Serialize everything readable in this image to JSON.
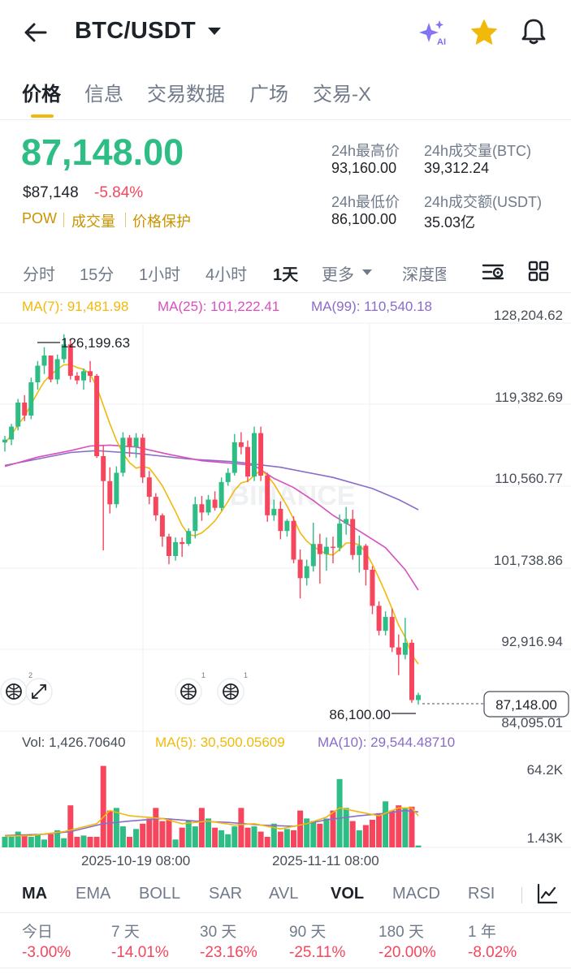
{
  "header": {
    "pair": "BTC/USDT"
  },
  "tabs": [
    "价格",
    "信息",
    "交易数据",
    "广场",
    "交易-X"
  ],
  "ticker": {
    "last_price": "87,148.00",
    "usd_price": "$87,148",
    "change_pct": "-5.84%",
    "tags": [
      "POW",
      "成交量",
      "价格保护"
    ],
    "stats": {
      "high_label": "24h最高价",
      "high_value": "93,160.00",
      "vol_btc_label": "24h成交量(BTC)",
      "vol_btc_value": "39,312.24",
      "low_label": "24h最低价",
      "low_value": "86,100.00",
      "vol_usdt_label": "24h成交额(USDT)",
      "vol_usdt_value": "35.03亿"
    }
  },
  "intervals": [
    "分时",
    "15分",
    "1小时",
    "4小时",
    "1天",
    "更多",
    "深度图"
  ],
  "active_interval": "1天",
  "chart": {
    "ma_legend": {
      "ma7": "MA(7): 91,481.98",
      "ma25": "MA(25): 101,222.41",
      "ma99": "MA(99): 110,540.18"
    },
    "y_axis": [
      "128,204.62",
      "119,382.69",
      "110,560.77",
      "101,738.86",
      "92,916.94",
      "84,095.01"
    ],
    "high_marker": "126,199.63",
    "low_marker": "86,100.00",
    "current_price_tag": "87,148.00",
    "watermark": "BINANCE",
    "vol_legend": {
      "vol": "Vol: 1,426.70640",
      "ma5": "MA(5): 30,500.05609",
      "ma10": "MA(10): 29,544.48710"
    },
    "vol_axis": [
      "64.2K",
      "1.43K"
    ],
    "x_axis": [
      "2025-10-19 08:00",
      "2025-11-11 08:00"
    ],
    "badges": [
      "2",
      "1",
      "1"
    ]
  },
  "colors": {
    "up": "#2ebd85",
    "down": "#f6465d",
    "ma7": "#f0b90b",
    "ma25": "#d94fbf",
    "ma99": "#8a6cc9",
    "brand": "#f0b90b"
  },
  "chart_data": {
    "type": "candlestick",
    "ylim": [
      84095.01,
      128204.62
    ],
    "candles": [
      [
        114500,
        115200,
        113500,
        114800
      ],
      [
        114800,
        116500,
        114200,
        116200
      ],
      [
        116200,
        119200,
        115800,
        118800
      ],
      [
        118800,
        119600,
        116800,
        117400
      ],
      [
        117400,
        121500,
        117000,
        121000
      ],
      [
        121000,
        123300,
        120200,
        122800
      ],
      [
        122800,
        124800,
        121900,
        123900
      ],
      [
        123900,
        123900,
        121000,
        121300
      ],
      [
        121300,
        124000,
        120800,
        123500
      ],
      [
        123500,
        126199.63,
        123100,
        125100
      ],
      [
        125100,
        125700,
        121300,
        121700
      ],
      [
        121700,
        122100,
        120800,
        121200
      ],
      [
        121200,
        122500,
        120200,
        122200
      ],
      [
        122200,
        123300,
        121000,
        121700
      ],
      [
        121700,
        121900,
        112800,
        113000
      ],
      [
        113000,
        114200,
        102800,
        110300
      ],
      [
        110300,
        111800,
        106800,
        107800
      ],
      [
        107800,
        111900,
        107400,
        111200
      ],
      [
        111200,
        115600,
        110800,
        115000
      ],
      [
        115000,
        115300,
        112900,
        114000
      ],
      [
        114000,
        115500,
        112800,
        115000
      ],
      [
        115000,
        115400,
        110100,
        110700
      ],
      [
        110700,
        111400,
        107800,
        108600
      ],
      [
        108600,
        109000,
        106000,
        106600
      ],
      [
        106600,
        106800,
        103200,
        104300
      ],
      [
        104300,
        104600,
        101300,
        102200
      ],
      [
        102200,
        104200,
        101700,
        103700
      ],
      [
        103700,
        104200,
        102100,
        103500
      ],
      [
        103500,
        105200,
        103300,
        104900
      ],
      [
        104900,
        108600,
        104100,
        107800
      ],
      [
        107800,
        108700,
        106000,
        106900
      ],
      [
        106900,
        108800,
        106600,
        108300
      ],
      [
        108300,
        109200,
        107100,
        107400
      ],
      [
        107400,
        110700,
        107100,
        110200
      ],
      [
        110200,
        111700,
        109800,
        111200
      ],
      [
        111200,
        115400,
        110900,
        114500
      ],
      [
        114500,
        115600,
        113200,
        114000
      ],
      [
        114000,
        114700,
        110200,
        110800
      ],
      [
        110800,
        116200,
        110300,
        115500
      ],
      [
        115500,
        116200,
        110300,
        110900
      ],
      [
        110900,
        111200,
        105900,
        106600
      ],
      [
        106600,
        108300,
        106000,
        107300
      ],
      [
        107300,
        108100,
        104000,
        104900
      ],
      [
        104900,
        106200,
        104300,
        106000
      ],
      [
        106000,
        106500,
        101400,
        101800
      ],
      [
        101800,
        102900,
        97600,
        99800
      ],
      [
        99800,
        101800,
        99000,
        101100
      ],
      [
        101100,
        105800,
        100500,
        103500
      ],
      [
        103500,
        104600,
        99200,
        102400
      ],
      [
        102400,
        104200,
        100600,
        103200
      ],
      [
        103200,
        104300,
        101400,
        103100
      ],
      [
        103100,
        106700,
        102700,
        105700
      ],
      [
        105700,
        107500,
        104500,
        106200
      ],
      [
        106200,
        107200,
        101800,
        102300
      ],
      [
        102300,
        104400,
        100400,
        103300
      ],
      [
        103300,
        103500,
        99000,
        100700
      ],
      [
        100700,
        101100,
        95900,
        96800
      ],
      [
        96800,
        97300,
        93600,
        94100
      ],
      [
        94100,
        96200,
        93600,
        95600
      ],
      [
        95600,
        96500,
        91800,
        92300
      ],
      [
        92300,
        93700,
        89300,
        91500
      ],
      [
        91500,
        95500,
        91000,
        92800
      ],
      [
        92800,
        93160,
        86300,
        86600
      ],
      [
        86600,
        87400,
        86100,
        87148
      ]
    ],
    "ma7": [
      [
        0,
        114400
      ],
      [
        1,
        115300
      ],
      [
        2,
        116400
      ],
      [
        3,
        117300
      ],
      [
        4,
        118600
      ],
      [
        5,
        119900
      ],
      [
        6,
        121100
      ],
      [
        7,
        121800
      ],
      [
        8,
        122400
      ],
      [
        9,
        122900
      ],
      [
        10,
        122900
      ],
      [
        11,
        122600
      ],
      [
        12,
        122400
      ],
      [
        13,
        121900
      ],
      [
        14,
        120500
      ],
      [
        15,
        118500
      ],
      [
        16,
        116500
      ],
      [
        17,
        114700
      ],
      [
        18,
        113300
      ],
      [
        19,
        112300
      ],
      [
        20,
        111700
      ],
      [
        21,
        111900
      ],
      [
        22,
        111700
      ],
      [
        23,
        110800
      ],
      [
        24,
        109800
      ],
      [
        25,
        108400
      ],
      [
        26,
        107000
      ],
      [
        27,
        105500
      ],
      [
        28,
        104500
      ],
      [
        29,
        104400
      ],
      [
        30,
        104700
      ],
      [
        31,
        105300
      ],
      [
        32,
        106000
      ],
      [
        33,
        107000
      ],
      [
        34,
        108100
      ],
      [
        35,
        109300
      ],
      [
        36,
        110100
      ],
      [
        37,
        110300
      ],
      [
        38,
        110900
      ],
      [
        39,
        111500
      ],
      [
        40,
        110900
      ],
      [
        41,
        110000
      ],
      [
        42,
        108800
      ],
      [
        43,
        107600
      ],
      [
        44,
        106200
      ],
      [
        45,
        104700
      ],
      [
        46,
        103800
      ],
      [
        47,
        103200
      ],
      [
        48,
        102800
      ],
      [
        49,
        102400
      ],
      [
        50,
        102300
      ],
      [
        51,
        102900
      ],
      [
        52,
        103600
      ],
      [
        53,
        103600
      ],
      [
        54,
        103400
      ],
      [
        55,
        102600
      ],
      [
        56,
        101300
      ],
      [
        57,
        99800
      ],
      [
        58,
        98200
      ],
      [
        59,
        96500
      ],
      [
        60,
        94700
      ],
      [
        61,
        93400
      ],
      [
        62,
        91500
      ],
      [
        63,
        90500
      ]
    ],
    "ma25": [
      [
        0,
        111900
      ],
      [
        5,
        112900
      ],
      [
        10,
        113600
      ],
      [
        13,
        114100
      ],
      [
        16,
        114200
      ],
      [
        20,
        114000
      ],
      [
        25,
        113200
      ],
      [
        30,
        112500
      ],
      [
        35,
        112200
      ],
      [
        38,
        112000
      ],
      [
        41,
        110600
      ],
      [
        44,
        109600
      ],
      [
        47,
        108200
      ],
      [
        50,
        106600
      ],
      [
        54,
        104900
      ],
      [
        58,
        103100
      ],
      [
        61,
        100700
      ],
      [
        63,
        98500
      ]
    ],
    "ma99": [
      [
        0,
        112000
      ],
      [
        5,
        112700
      ],
      [
        10,
        113400
      ],
      [
        14,
        113600
      ],
      [
        20,
        113300
      ],
      [
        28,
        112700
      ],
      [
        35,
        112400
      ],
      [
        42,
        111800
      ],
      [
        50,
        110700
      ],
      [
        56,
        109500
      ],
      [
        60,
        108300
      ],
      [
        63,
        107200
      ]
    ],
    "volume": {
      "ylim": [
        1430,
        64200
      ],
      "values": [
        8000,
        8000,
        12000,
        9000,
        8000,
        10000,
        6000,
        10000,
        13000,
        7000,
        32000,
        8000,
        9000,
        8000,
        8000,
        62000,
        28000,
        30000,
        16000,
        8000,
        14000,
        18000,
        22000,
        30000,
        20000,
        22000,
        6000,
        15000,
        20000,
        16000,
        30000,
        22000,
        15000,
        13000,
        10000,
        16000,
        30000,
        15000,
        16000,
        12000,
        8000,
        18000,
        12000,
        14000,
        13000,
        28000,
        22000,
        20000,
        18000,
        22000,
        28000,
        52000,
        30000,
        20000,
        13000,
        17000,
        21000,
        26000,
        35000,
        28000,
        32000,
        30000,
        31000,
        1426.7
      ],
      "ma5": [
        [
          0,
          8500
        ],
        [
          4,
          9000
        ],
        [
          9,
          12000
        ],
        [
          14,
          18000
        ],
        [
          16,
          28000
        ],
        [
          19,
          24000
        ],
        [
          24,
          22000
        ],
        [
          27,
          18000
        ],
        [
          31,
          20000
        ],
        [
          35,
          17000
        ],
        [
          38,
          18000
        ],
        [
          42,
          14000
        ],
        [
          46,
          18000
        ],
        [
          49,
          23000
        ],
        [
          51,
          30000
        ],
        [
          54,
          27000
        ],
        [
          57,
          24000
        ],
        [
          60,
          30000
        ],
        [
          62,
          30000
        ],
        [
          63,
          24000
        ]
      ],
      "ma10": [
        [
          0,
          9000
        ],
        [
          6,
          10000
        ],
        [
          10,
          12000
        ],
        [
          15,
          18000
        ],
        [
          19,
          20000
        ],
        [
          24,
          22000
        ],
        [
          29,
          20000
        ],
        [
          34,
          19000
        ],
        [
          39,
          17000
        ],
        [
          44,
          16000
        ],
        [
          49,
          21000
        ],
        [
          54,
          24000
        ],
        [
          58,
          26000
        ],
        [
          61,
          28000
        ],
        [
          63,
          27000
        ]
      ]
    },
    "x_ticks": [
      [
        "2025-10-19 08:00",
        21
      ],
      [
        "2025-11-11 08:00",
        44
      ]
    ]
  },
  "indicators": [
    "MA",
    "EMA",
    "BOLL",
    "SAR",
    "AVL",
    "VOL",
    "MACD",
    "RSI"
  ],
  "active_indicators": [
    "MA",
    "VOL"
  ],
  "performance": {
    "labels": [
      "今日",
      "7 天",
      "30 天",
      "90 天",
      "180 天",
      "1 年"
    ],
    "values": [
      "-3.00%",
      "-14.01%",
      "-23.16%",
      "-25.11%",
      "-20.00%",
      "-8.02%"
    ]
  }
}
